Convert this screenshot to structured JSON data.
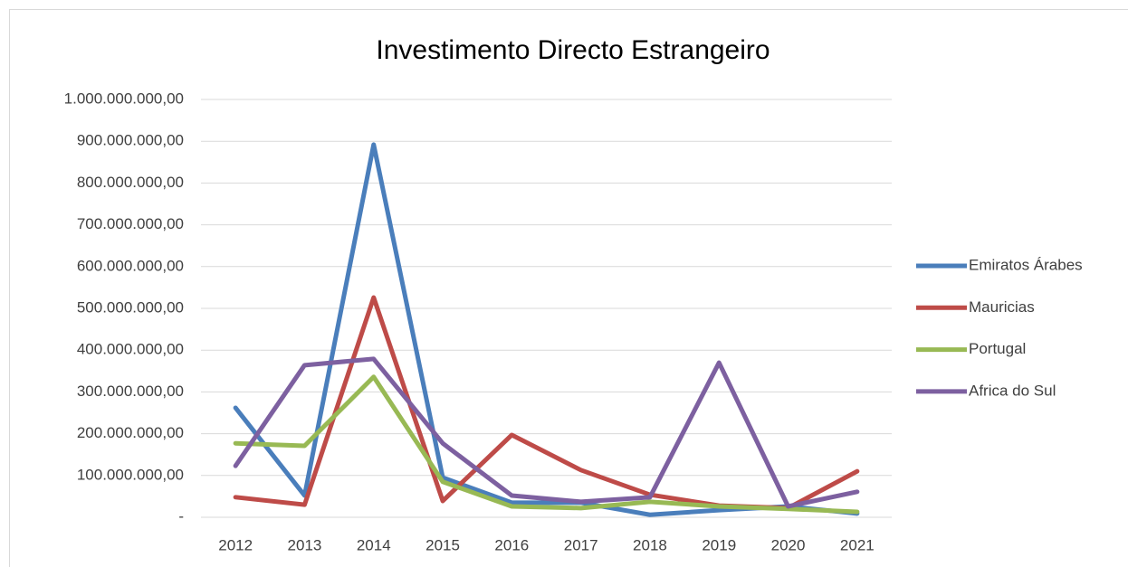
{
  "chart_data": {
    "type": "line",
    "title": "Investimento Directo Estrangeiro",
    "categories": [
      "2012",
      "2013",
      "2014",
      "2015",
      "2016",
      "2017",
      "2018",
      "2019",
      "2020",
      "2021"
    ],
    "series": [
      {
        "name": "Emiratos Árabes",
        "color": "#4a7ebb",
        "values": [
          262000000,
          52000000,
          892000000,
          95000000,
          35000000,
          35000000,
          6000000,
          17000000,
          26000000,
          9000000
        ]
      },
      {
        "name": "Mauricias",
        "color": "#be4b48",
        "values": [
          48000000,
          30000000,
          526000000,
          39000000,
          197000000,
          113000000,
          54000000,
          28000000,
          22000000,
          110000000
        ]
      },
      {
        "name": "Portugal",
        "color": "#98b954",
        "values": [
          177000000,
          171000000,
          336000000,
          85000000,
          26000000,
          22000000,
          37000000,
          26000000,
          20000000,
          13000000
        ]
      },
      {
        "name": "Africa do Sul",
        "color": "#7d60a0",
        "values": [
          123000000,
          364000000,
          379000000,
          177000000,
          52000000,
          37000000,
          48000000,
          370000000,
          26000000,
          61000000
        ]
      }
    ],
    "ylim": [
      0,
      1000000000
    ],
    "yticks": [
      {
        "value": 0,
        "label": "-"
      },
      {
        "value": 100000000,
        "label": "100.000.000,00"
      },
      {
        "value": 200000000,
        "label": "200.000.000,00"
      },
      {
        "value": 300000000,
        "label": "300.000.000,00"
      },
      {
        "value": 400000000,
        "label": "400.000.000,00"
      },
      {
        "value": 500000000,
        "label": "500.000.000,00"
      },
      {
        "value": 600000000,
        "label": "600.000.000,00"
      },
      {
        "value": 700000000,
        "label": "700.000.000,00"
      },
      {
        "value": 800000000,
        "label": "800.000.000,00"
      },
      {
        "value": 900000000,
        "label": "900.000.000,00"
      },
      {
        "value": 1000000000,
        "label": "1.000.000.000,00"
      }
    ],
    "grid": true,
    "legend": "right"
  }
}
